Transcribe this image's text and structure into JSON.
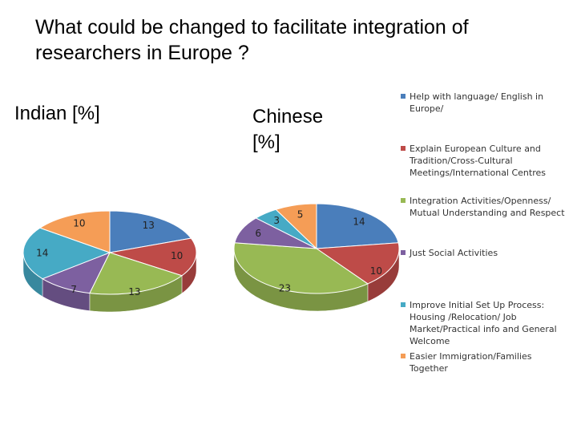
{
  "title": "What could be changed to facilitate integration of researchers in Europe ?",
  "legend": {
    "labels": [
      "Help with language/ English in Europe/",
      "Explain European Culture and Tradition/Cross-Cultural Meetings/International Centres",
      "Integration Activities/Openness/ Mutual Understanding and Respect",
      "Just Social Activities",
      "Improve Initial Set Up Process: Housing /Relocation/ Job Market/Practical info and General Welcome",
      "Easier Immigration/Families Together"
    ],
    "colors": [
      "#4a7ebb",
      "#be4b48",
      "#98b954",
      "#7d60a0",
      "#46aac5",
      "#f59d56"
    ]
  },
  "chart_data": [
    {
      "type": "pie",
      "title": "Indian [%]",
      "values": [
        13,
        10,
        13,
        7,
        14,
        10
      ]
    },
    {
      "type": "pie",
      "title": "Chinese [%]",
      "values": [
        14,
        10,
        23,
        6,
        3,
        5
      ]
    }
  ]
}
